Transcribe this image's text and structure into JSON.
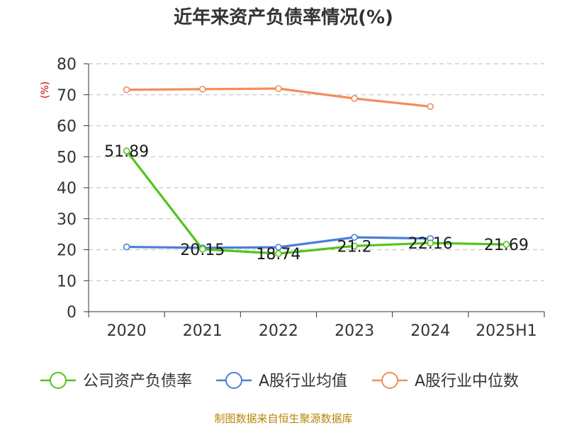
{
  "chart_data": {
    "type": "line",
    "title": "近年来资产负债率情况(%)",
    "ylabel": "(%)",
    "categories": [
      "2020",
      "2021",
      "2022",
      "2023",
      "2024",
      "2025H1"
    ],
    "ylim": [
      0,
      80
    ],
    "yticks": [
      "0",
      "10",
      "20",
      "30",
      "40",
      "50",
      "60",
      "70",
      "80"
    ],
    "grid": true,
    "legend_position": "bottom",
    "series": [
      {
        "name": "公司资产负债率",
        "color": "#52c41a",
        "values": [
          51.89,
          20.15,
          18.74,
          21.2,
          22.16,
          21.69
        ],
        "labels": [
          "51.89",
          "20.15",
          "18.74",
          "21.2",
          "22.16",
          "21.69"
        ]
      },
      {
        "name": "A股行业均值",
        "color": "#4a7fd6",
        "values": [
          20.9,
          20.6,
          20.8,
          24.0,
          23.6,
          null
        ]
      },
      {
        "name": "A股行业中位数",
        "color": "#f28e5b",
        "values": [
          71.6,
          71.8,
          72.0,
          68.8,
          66.2,
          null
        ]
      }
    ]
  },
  "source": "制图数据来自恒生聚源数据库"
}
